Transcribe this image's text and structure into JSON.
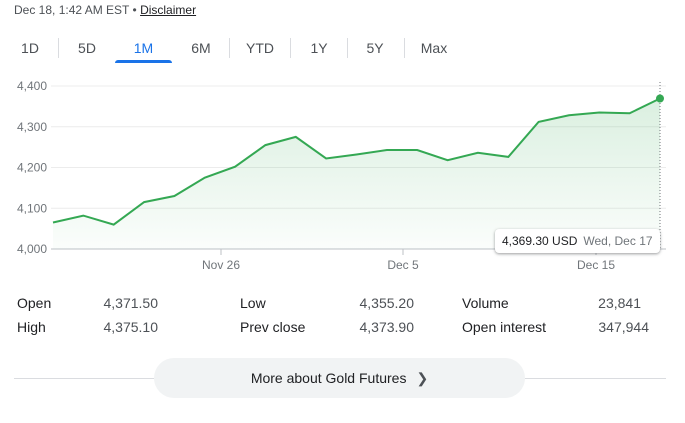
{
  "header": {
    "timestamp": "Dec 18, 1:42 AM EST",
    "separator": "•",
    "disclaimer_label": "Disclaimer"
  },
  "tabs": [
    {
      "label": "1D",
      "active": false
    },
    {
      "label": "5D",
      "active": false
    },
    {
      "label": "1M",
      "active": true
    },
    {
      "label": "6M",
      "active": false
    },
    {
      "label": "YTD",
      "active": false
    },
    {
      "label": "1Y",
      "active": false
    },
    {
      "label": "5Y",
      "active": false
    },
    {
      "label": "Max",
      "active": false
    }
  ],
  "chart_data": {
    "type": "area",
    "title": "",
    "xlabel": "",
    "ylabel": "",
    "ylim": [
      4000,
      4400
    ],
    "y_ticks": [
      "4,000",
      "4,100",
      "4,200",
      "4,300",
      "4,400"
    ],
    "x_tick_labels": [
      "Nov 26",
      "Dec 5",
      "Dec 15"
    ],
    "grid": true,
    "line_color": "#34a853",
    "series": [
      {
        "values": [
          4065,
          4082,
          4060,
          4115,
          4130,
          4175,
          4202,
          4255,
          4275,
          4222,
          4232,
          4243,
          4243,
          4218,
          4236,
          4226,
          4312,
          4328,
          4335,
          4333,
          4369.3
        ]
      }
    ]
  },
  "tooltip": {
    "price": "4,369.30 USD",
    "date": "Wed, Dec 17"
  },
  "stats": {
    "open_label": "Open",
    "open_value": "4,371.50",
    "high_label": "High",
    "high_value": "4,375.10",
    "low_label": "Low",
    "low_value": "4,355.20",
    "prev_close_label": "Prev close",
    "prev_close_value": "4,373.90",
    "volume_label": "Volume",
    "volume_value": "23,841",
    "open_interest_label": "Open interest",
    "open_interest_value": "347,944"
  },
  "more_button": {
    "label": "More about Gold Futures",
    "icon": "chevron-right-icon"
  }
}
